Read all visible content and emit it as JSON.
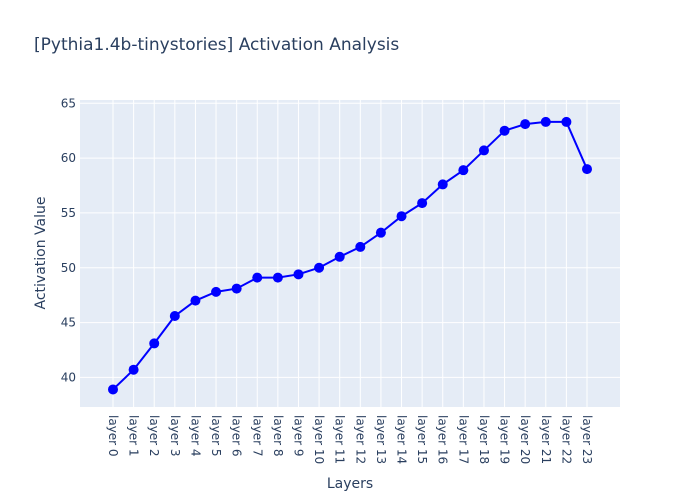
{
  "chart_data": {
    "type": "line",
    "title": "[Pythia1.4b-tinystories] Activation Analysis",
    "xlabel": "Layers",
    "ylabel": "Activation Value",
    "categories": [
      "layer 0",
      "layer 1",
      "layer 2",
      "layer 3",
      "layer 4",
      "layer 5",
      "layer 6",
      "layer 7",
      "layer 8",
      "layer 9",
      "layer 10",
      "layer 11",
      "layer 12",
      "layer 13",
      "layer 14",
      "layer 15",
      "layer 16",
      "layer 17",
      "layer 18",
      "layer 19",
      "layer 20",
      "layer 21",
      "layer 22",
      "layer 23"
    ],
    "series": [
      {
        "values": [
          38.9,
          40.7,
          43.1,
          45.6,
          47.0,
          47.8,
          48.1,
          49.1,
          49.1,
          49.4,
          50.0,
          51.0,
          51.9,
          53.2,
          54.7,
          55.9,
          57.6,
          58.9,
          60.7,
          62.5,
          63.1,
          63.3,
          63.3,
          59.0
        ],
        "color": "#0000ff"
      }
    ],
    "y_ticks": [
      40,
      45,
      50,
      55,
      60,
      65
    ],
    "ylim": [
      37.3,
      65.3
    ],
    "grid": true,
    "legend": "none",
    "background_color": "#e5ecf6",
    "grid_color": "#ffffff",
    "text_color": "#2a3f5f"
  }
}
